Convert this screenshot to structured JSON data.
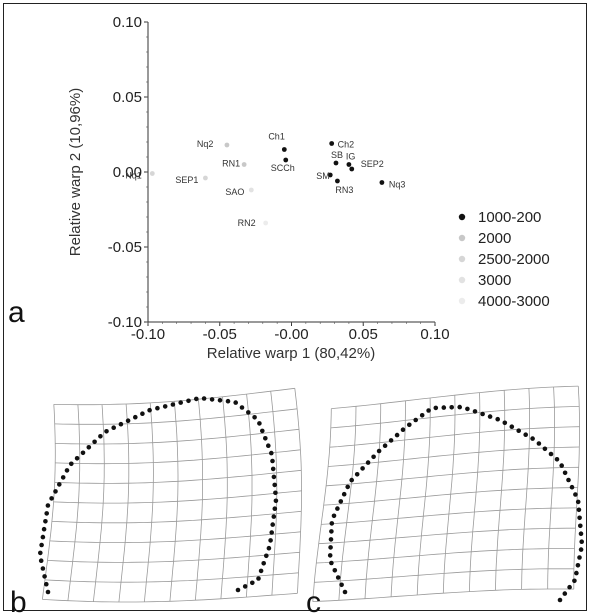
{
  "chart_data": {
    "type": "scatter",
    "xlabel": "Relative warp 1 (80,42%)",
    "ylabel": "Relative warp 2 (10,96%)",
    "xlim": [
      -0.1,
      0.1
    ],
    "ylim": [
      -0.1,
      0.1
    ],
    "xticks": [
      "-0.10",
      "-0.05",
      "-0.00",
      "0.05",
      "0.10"
    ],
    "yticks": [
      "0.10",
      "0.05",
      "0.00",
      "-0.05",
      "-0.10"
    ],
    "legend": [
      {
        "label": "1000-200",
        "color": "#111111"
      },
      {
        "label": "2000",
        "color": "#c8c8c8"
      },
      {
        "label": "2500-2000",
        "color": "#d6d6d6"
      },
      {
        "label": "3000",
        "color": "#e2e2e2"
      },
      {
        "label": "4000-3000",
        "color": "#ececec"
      }
    ],
    "points": [
      {
        "label": "Ch1",
        "x": -0.005,
        "y": 0.015,
        "color": "#111111"
      },
      {
        "label": "SCCh",
        "x": -0.004,
        "y": 0.008,
        "color": "#111111"
      },
      {
        "label": "Ch2",
        "x": 0.028,
        "y": 0.019,
        "color": "#111111"
      },
      {
        "label": "SB",
        "x": 0.031,
        "y": 0.006,
        "color": "#111111"
      },
      {
        "label": "IG",
        "x": 0.04,
        "y": 0.005,
        "color": "#111111"
      },
      {
        "label": "SEP2",
        "x": 0.042,
        "y": 0.002,
        "color": "#111111"
      },
      {
        "label": "SM",
        "x": 0.027,
        "y": -0.002,
        "color": "#111111"
      },
      {
        "label": "RN3",
        "x": 0.032,
        "y": -0.006,
        "color": "#111111"
      },
      {
        "label": "Nq3",
        "x": 0.063,
        "y": -0.007,
        "color": "#111111"
      },
      {
        "label": "Nq2",
        "x": -0.045,
        "y": 0.018,
        "color": "#c8c8c8"
      },
      {
        "label": "RN1",
        "x": -0.033,
        "y": 0.005,
        "color": "#c8c8c8"
      },
      {
        "label": "Nq1",
        "x": -0.097,
        "y": -0.001,
        "color": "#d6d6d6"
      },
      {
        "label": "SEP1",
        "x": -0.06,
        "y": -0.004,
        "color": "#d6d6d6"
      },
      {
        "label": "SAO",
        "x": -0.028,
        "y": -0.012,
        "color": "#e2e2e2"
      },
      {
        "label": "RN2",
        "x": -0.018,
        "y": -0.034,
        "color": "#ececec"
      }
    ]
  },
  "panels": {
    "a": "a",
    "b": "b",
    "c": "c"
  }
}
